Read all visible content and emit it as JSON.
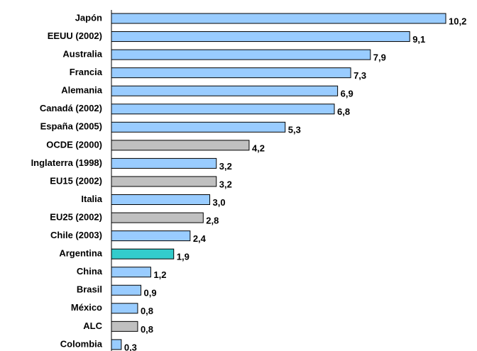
{
  "chart_data": {
    "type": "barh",
    "categories": [
      "Japón",
      "EEUU (2002)",
      "Australia",
      "Francia",
      "Alemania",
      "Canadá (2002)",
      "España (2005)",
      "OCDE (2000)",
      "Inglaterra (1998)",
      "EU15 (2002)",
      "Italia",
      "EU25 (2002)",
      "Chile (2003)",
      "Argentina",
      "China",
      "Brasil",
      "México",
      "ALC",
      "Colombia"
    ],
    "values": [
      10.2,
      9.1,
      7.9,
      7.3,
      6.9,
      6.8,
      5.3,
      4.2,
      3.2,
      3.2,
      3.0,
      2.8,
      2.4,
      1.9,
      1.2,
      0.9,
      0.8,
      0.8,
      0.3
    ],
    "value_labels": [
      "10,2",
      "9,1",
      "7,9",
      "7,3",
      "6,9",
      "6,8",
      "5,3",
      "4,2",
      "3,2",
      "3,2",
      "3,0",
      "2,8",
      "2,4",
      "1,9",
      "1,2",
      "0,9",
      "0,8",
      "0,8",
      "0,3"
    ],
    "colors": [
      "#99ccff",
      "#99ccff",
      "#99ccff",
      "#99ccff",
      "#99ccff",
      "#99ccff",
      "#99ccff",
      "#c0c0c0",
      "#99ccff",
      "#c0c0c0",
      "#99ccff",
      "#c0c0c0",
      "#99ccff",
      "#33cccc",
      "#99ccff",
      "#99ccff",
      "#99ccff",
      "#c0c0c0",
      "#99ccff"
    ]
  }
}
